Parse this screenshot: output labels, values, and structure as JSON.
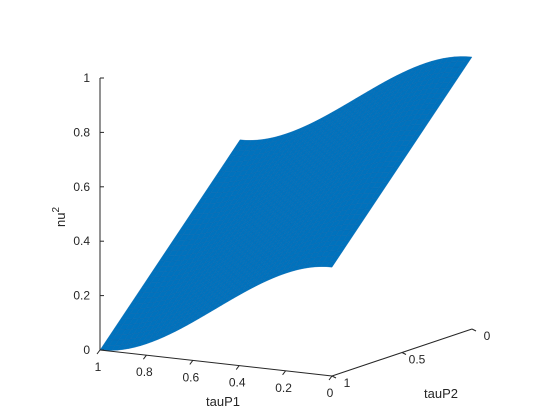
{
  "chart_data": {
    "type": "surface",
    "surface_color": "#0072BD",
    "axis_color": "#262626",
    "background": "#ffffff",
    "grid": false,
    "x_axis": {
      "label": "tauP1",
      "range": [
        0,
        1
      ],
      "ticks": [
        1,
        0.8,
        0.6,
        0.4,
        0.2,
        0
      ],
      "tick_labels": [
        "1",
        "0.8",
        "0.6",
        "0.4",
        "0.2",
        "0"
      ]
    },
    "y_axis": {
      "label": "tauP2",
      "range": [
        0,
        1
      ],
      "ticks": [
        1,
        0.5,
        0
      ],
      "tick_labels": [
        "1",
        "0.5",
        "0"
      ]
    },
    "z_axis": {
      "label_base": "nu",
      "label_sup": "2",
      "range": [
        0,
        1
      ],
      "ticks": [
        0,
        0.2,
        0.4,
        0.6,
        0.8,
        1
      ],
      "tick_labels": [
        "0",
        "0.2",
        "0.4",
        "0.6",
        "0.8",
        "1"
      ]
    },
    "corners": [
      {
        "tauP1": 1,
        "tauP2": 1,
        "nu2": 0
      },
      {
        "tauP1": 1,
        "tauP2": 0,
        "nu2": 0.6
      },
      {
        "tauP1": 0,
        "tauP2": 1,
        "nu2": 0.4
      },
      {
        "tauP1": 0,
        "tauP2": 0,
        "nu2": 1
      }
    ]
  }
}
